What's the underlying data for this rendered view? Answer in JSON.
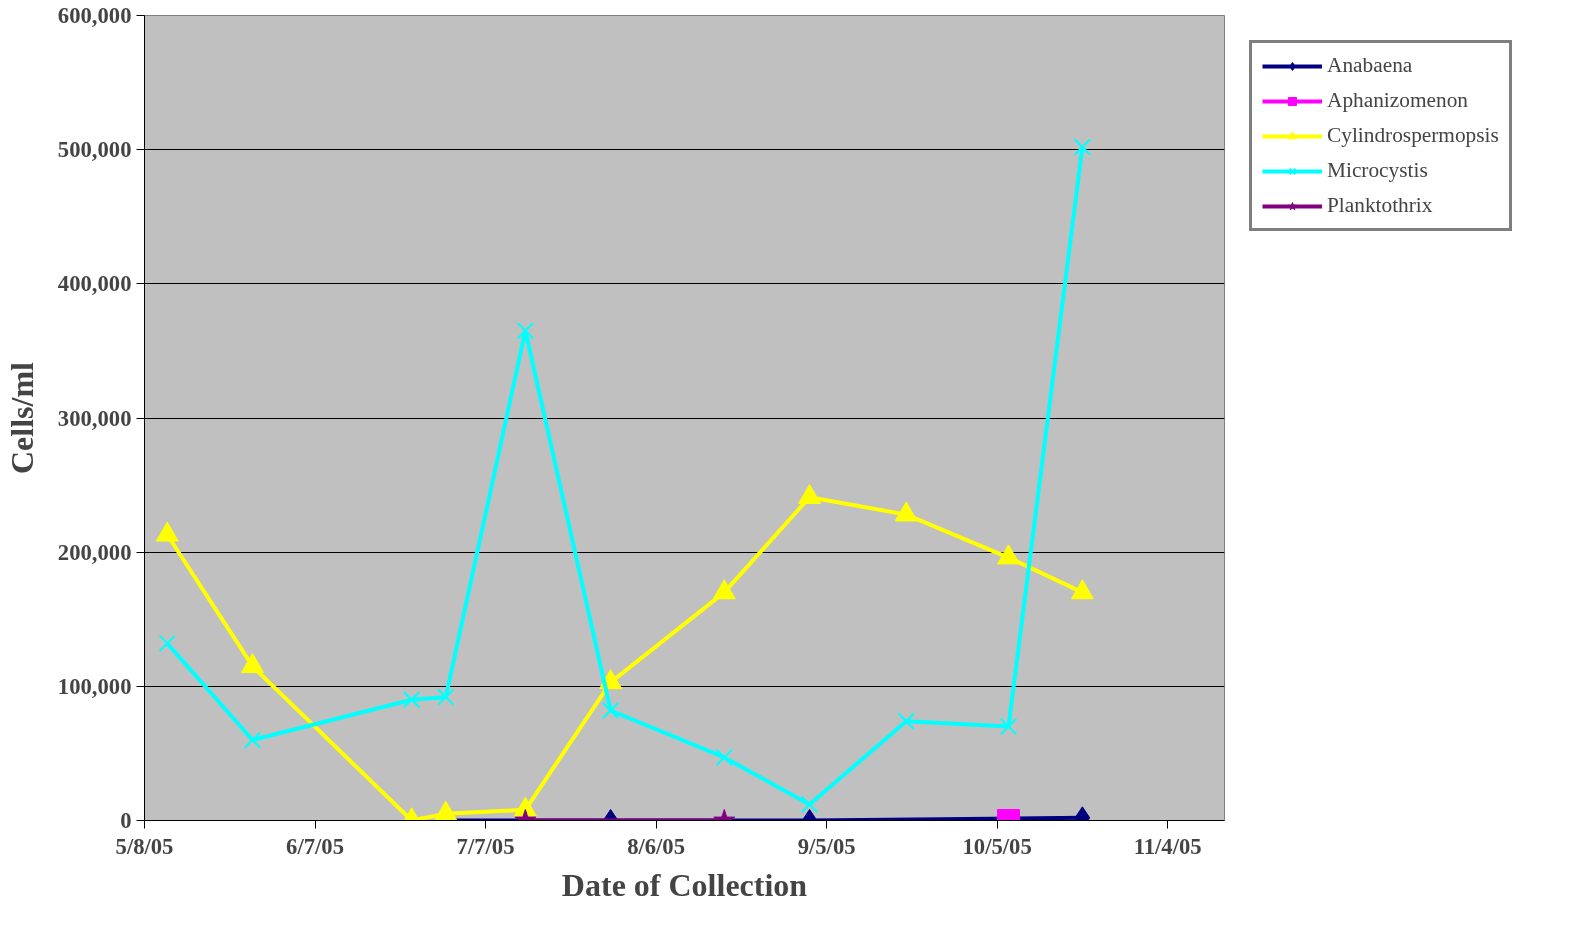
{
  "chart_data": {
    "type": "line",
    "xlabel": "Date of Collection",
    "ylabel": "Cells/ml",
    "xlim": [
      "2005-05-08",
      "2005-11-14"
    ],
    "xticks": [
      {
        "value": "2005-05-08",
        "label": "5/8/05"
      },
      {
        "value": "2005-06-07",
        "label": "6/7/05"
      },
      {
        "value": "2005-07-07",
        "label": "7/7/05"
      },
      {
        "value": "2005-08-06",
        "label": "8/6/05"
      },
      {
        "value": "2005-09-05",
        "label": "9/5/05"
      },
      {
        "value": "2005-10-05",
        "label": "10/5/05"
      },
      {
        "value": "2005-11-04",
        "label": "11/4/05"
      }
    ],
    "ylim": [
      0,
      600000
    ],
    "yticks": [
      {
        "value": 0,
        "label": "0"
      },
      {
        "value": 100000,
        "label": "100,000"
      },
      {
        "value": 200000,
        "label": "200,000"
      },
      {
        "value": 300000,
        "label": "300,000"
      },
      {
        "value": 400000,
        "label": "400,000"
      },
      {
        "value": 500000,
        "label": "500,000"
      },
      {
        "value": 600000,
        "label": "600,000"
      }
    ],
    "grid": "y",
    "legend": "right",
    "series": [
      {
        "name": "Anabaena",
        "color": "#000080",
        "marker": "diamond",
        "x": [
          "2005-06-30",
          "2005-07-29",
          "2005-09-02",
          "2005-10-20"
        ],
        "values": [
          0,
          0,
          0,
          2000
        ]
      },
      {
        "name": "Aphanizomenon",
        "color": "#ff00ff",
        "marker": "square",
        "x": [
          "2005-10-07"
        ],
        "values": [
          0
        ]
      },
      {
        "name": "Cylindrospermopsis",
        "color": "#ffff00",
        "marker": "triangle",
        "x": [
          "2005-05-12",
          "2005-05-27",
          "2005-06-24",
          "2005-06-30",
          "2005-07-14",
          "2005-07-29",
          "2005-08-18",
          "2005-09-02",
          "2005-09-19",
          "2005-10-07",
          "2005-10-20"
        ],
        "values": [
          213000,
          115000,
          0,
          5000,
          8000,
          103000,
          170000,
          241000,
          228000,
          196000,
          170000
        ]
      },
      {
        "name": "Microcystis",
        "color": "#00ffff",
        "marker": "cross",
        "x": [
          "2005-05-12",
          "2005-05-27",
          "2005-06-24",
          "2005-06-30",
          "2005-07-14",
          "2005-07-29",
          "2005-08-18",
          "2005-09-02",
          "2005-09-19",
          "2005-10-07",
          "2005-10-20"
        ],
        "values": [
          132000,
          60000,
          90000,
          92000,
          365000,
          82000,
          47000,
          12000,
          74000,
          70000,
          502000
        ]
      },
      {
        "name": "Planktothrix",
        "color": "#800080",
        "marker": "star",
        "x": [
          "2005-07-14",
          "2005-08-18"
        ],
        "values": [
          0,
          0
        ]
      }
    ]
  }
}
